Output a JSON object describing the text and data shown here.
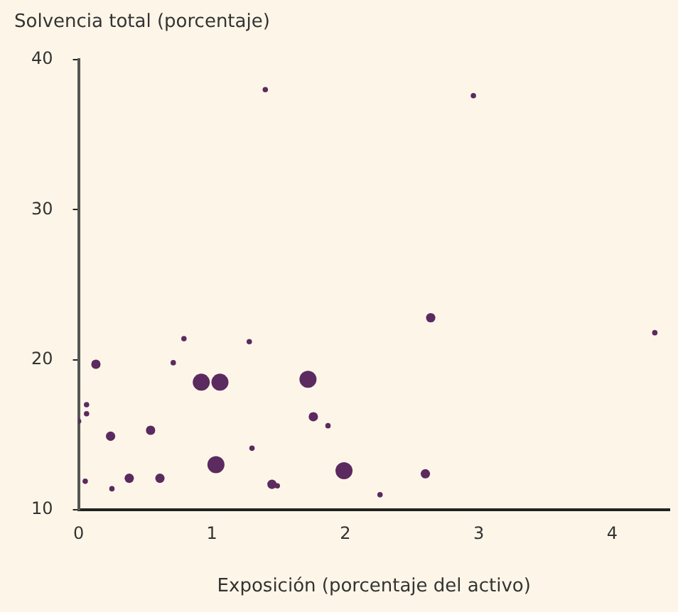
{
  "chart_data": {
    "type": "bubble",
    "ylabel": "Solvencia total (porcentaje)",
    "xlabel": "Exposición (porcentaje del activo)",
    "xlim": [
      0,
      4.43
    ],
    "xticks": [
      0,
      1,
      2,
      3,
      4
    ],
    "ylim": [
      10,
      40
    ],
    "yticks": [
      10,
      20,
      30,
      40
    ],
    "grid": false,
    "legend": false,
    "series": [
      {
        "color": "#5b2a5f",
        "x": [
          1.4,
          2.96,
          4.32,
          2.64,
          0.13,
          0.79,
          0.71,
          1.28,
          0.92,
          1.06,
          1.72,
          0.06,
          0.06,
          0.0,
          0.24,
          0.54,
          1.76,
          1.87,
          1.3,
          0.05,
          0.38,
          0.61,
          1.03,
          0.25,
          1.45,
          1.49,
          1.99,
          2.6,
          2.26
        ],
        "values": [
          38.0,
          37.6,
          21.8,
          22.8,
          19.7,
          21.4,
          19.8,
          21.2,
          18.5,
          18.5,
          18.7,
          17.0,
          16.4,
          15.9,
          14.9,
          15.3,
          16.2,
          15.6,
          14.1,
          11.9,
          12.1,
          12.1,
          13.0,
          11.4,
          11.7,
          11.6,
          12.6,
          12.4,
          11.0
        ],
        "sizes": [
          0.1,
          0.1,
          0.1,
          0.3,
          0.3,
          0.1,
          0.1,
          0.1,
          1,
          1,
          1,
          0.1,
          0.1,
          0.1,
          0.3,
          0.3,
          0.3,
          0.1,
          0.1,
          0.1,
          0.3,
          0.3,
          1,
          0.1,
          0.3,
          0.1,
          1,
          0.3,
          0.1
        ]
      }
    ]
  }
}
